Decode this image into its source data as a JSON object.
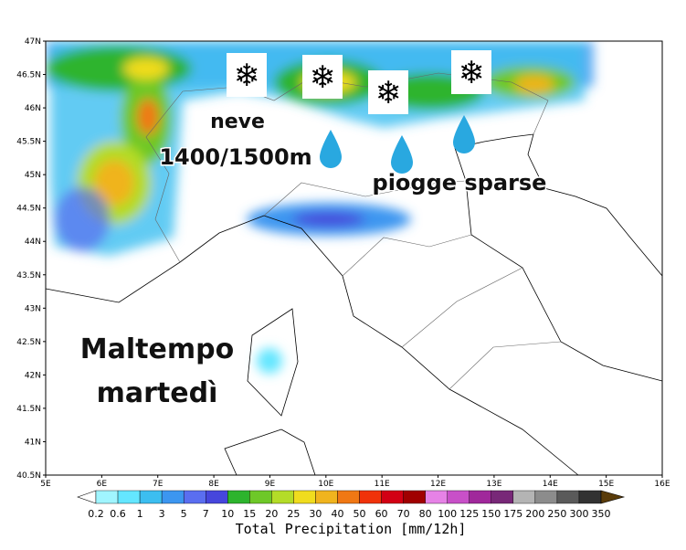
{
  "map": {
    "lat_labels": [
      "47N",
      "46.5N",
      "46N",
      "45.5N",
      "45N",
      "44.5N",
      "44N",
      "43.5N",
      "43N",
      "42.5N",
      "42N",
      "41.5N",
      "41N",
      "40.5N"
    ],
    "lon_labels": [
      "5E",
      "6E",
      "7E",
      "8E",
      "9E",
      "10E",
      "11E",
      "12E",
      "13E",
      "14E",
      "15E",
      "16E"
    ]
  },
  "annotations": {
    "snow": "neve",
    "snow_level": "1400/1500m",
    "rain": "piogge sparse",
    "headline_1": "Maltempo",
    "headline_2": "martedì"
  },
  "legend": {
    "title": "Total Precipitation [mm/12h]",
    "labels": [
      "0.2",
      "0.6",
      "1",
      "3",
      "5",
      "7",
      "10",
      "15",
      "20",
      "25",
      "30",
      "40",
      "50",
      "60",
      "70",
      "80",
      "100",
      "125",
      "150",
      "175",
      "200",
      "250",
      "300",
      "350"
    ],
    "colors": [
      "#ffffff",
      "#a0f5ff",
      "#64e6ff",
      "#3cbef0",
      "#3c96f0",
      "#5a6ef0",
      "#4646dc",
      "#2db42d",
      "#6ec828",
      "#b4dc28",
      "#f0dc1e",
      "#f0b41e",
      "#f07814",
      "#f0320a",
      "#d20014",
      "#a00000",
      "#e682e6",
      "#c850c8",
      "#a0289b",
      "#782878",
      "#b4b4b4",
      "#8c8c8c",
      "#5a5a5a",
      "#323232",
      "#5a3c0a"
    ]
  }
}
